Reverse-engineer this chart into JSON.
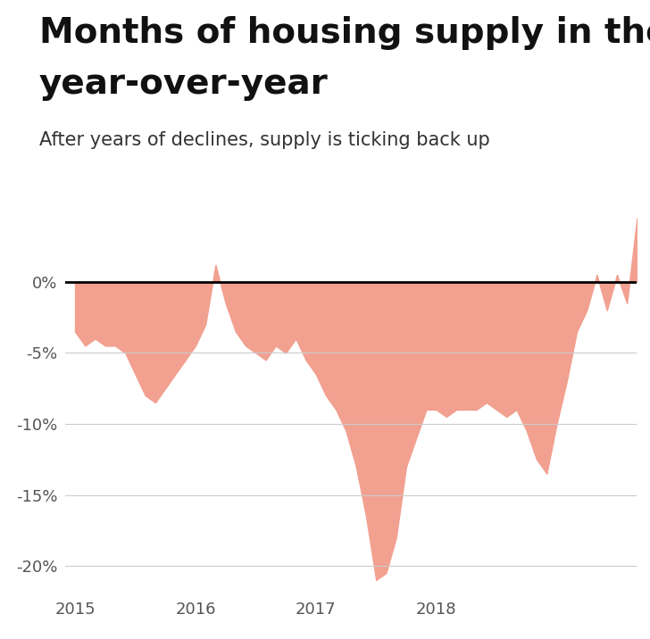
{
  "title_line1": "Months of housing supply in the U.S.",
  "title_line2": "year-over-year",
  "subtitle": "After years of declines, supply is ticking back up",
  "title_fontsize": 28,
  "subtitle_fontsize": 15,
  "fill_color": "#F2A090",
  "zero_line_color": "#000000",
  "grid_color": "#cccccc",
  "background_color": "#ffffff",
  "ylim": [
    -22,
    5
  ],
  "yticks": [
    0,
    -5,
    -10,
    -15,
    -20
  ],
  "ytick_labels": [
    "0%",
    "-5%",
    "-10%",
    "-15%",
    "-20%"
  ],
  "values": [
    -3.5,
    -4.5,
    -4.0,
    -4.5,
    -4.5,
    -5.0,
    -6.5,
    -8.0,
    -8.5,
    -7.5,
    -6.5,
    -5.5,
    -4.5,
    -3.0,
    1.2,
    -1.5,
    -3.5,
    -4.5,
    -5.0,
    -5.5,
    -4.5,
    -5.0,
    -4.0,
    -5.5,
    -6.5,
    -8.0,
    -9.0,
    -10.5,
    -13.0,
    -16.5,
    -21.0,
    -20.5,
    -18.0,
    -13.0,
    -11.0,
    -9.0,
    -9.0,
    -9.5,
    -9.0,
    -9.0,
    -9.0,
    -8.5,
    -9.0,
    -9.5,
    -9.0,
    -10.5,
    -12.5,
    -13.5,
    -10.0,
    -7.0,
    -3.5,
    -2.0,
    0.5,
    -2.0,
    0.5,
    -1.5,
    4.5
  ],
  "xtick_years": [
    "2015",
    "2016",
    "2017",
    "2018"
  ],
  "xtick_positions": [
    0,
    12,
    24,
    36
  ]
}
